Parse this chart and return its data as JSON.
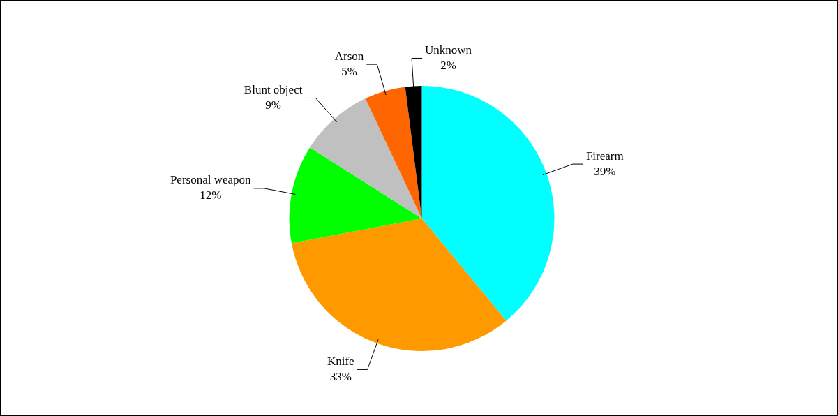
{
  "chart_data": {
    "type": "pie",
    "categories": [
      "Firearm",
      "Knife",
      "Personal weapon",
      "Blunt object",
      "Arson",
      "Unknown"
    ],
    "values": [
      39,
      33,
      12,
      9,
      5,
      2
    ],
    "colors": [
      "#00ffff",
      "#ff9900",
      "#00ff00",
      "#c0c0c0",
      "#ff6600",
      "#000000"
    ],
    "value_labels": [
      "39%",
      "33%",
      "12%",
      "9%",
      "5%",
      "2%"
    ],
    "legend": false
  }
}
